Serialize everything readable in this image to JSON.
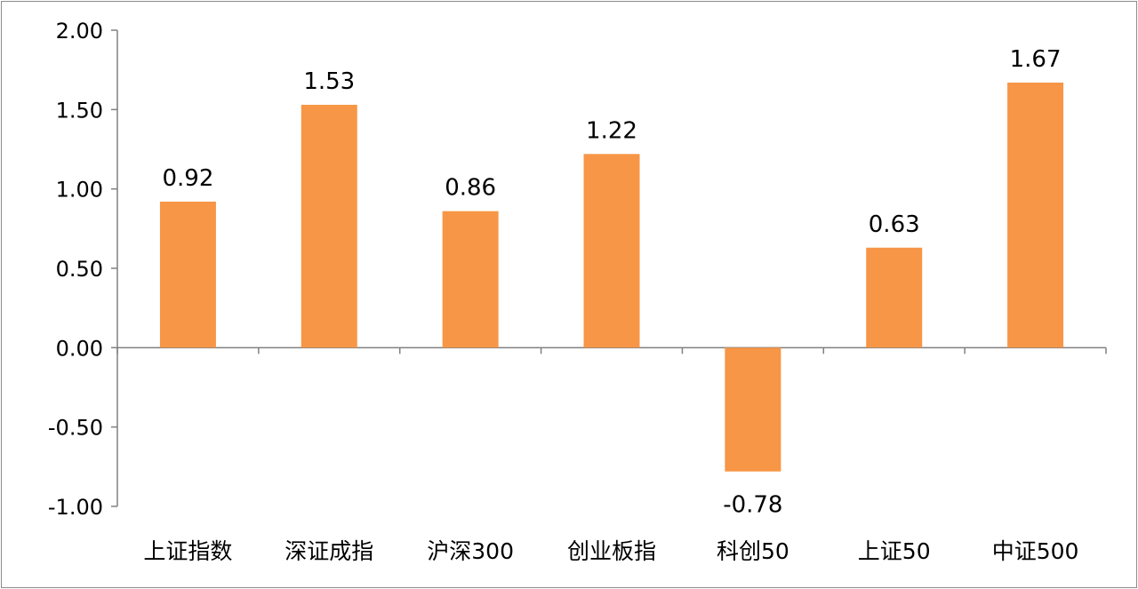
{
  "colors": {
    "bar": "#F79646",
    "axis": "#808080",
    "border": "#8c8c8c"
  },
  "chart_data": {
    "type": "bar",
    "title": "",
    "xlabel": "",
    "ylabel": "",
    "categories": [
      "上证指数",
      "深证成指",
      "沪深300",
      "创业板指",
      "科创50",
      "上证50",
      "中证500"
    ],
    "values": [
      0.92,
      1.53,
      0.86,
      1.22,
      -0.78,
      0.63,
      1.67
    ],
    "data_labels": [
      "0.92",
      "1.53",
      "0.86",
      "1.22",
      "-0.78",
      "0.63",
      "1.67"
    ],
    "ylim": [
      -1.0,
      2.0
    ],
    "yticks": [
      2.0,
      1.5,
      1.0,
      0.5,
      0.0,
      -0.5,
      -1.0
    ],
    "ytick_labels": [
      "2.00",
      "1.50",
      "1.00",
      "0.50",
      "0.00",
      "-0.50",
      "-1.00"
    ],
    "grid": false,
    "legend": "none"
  }
}
